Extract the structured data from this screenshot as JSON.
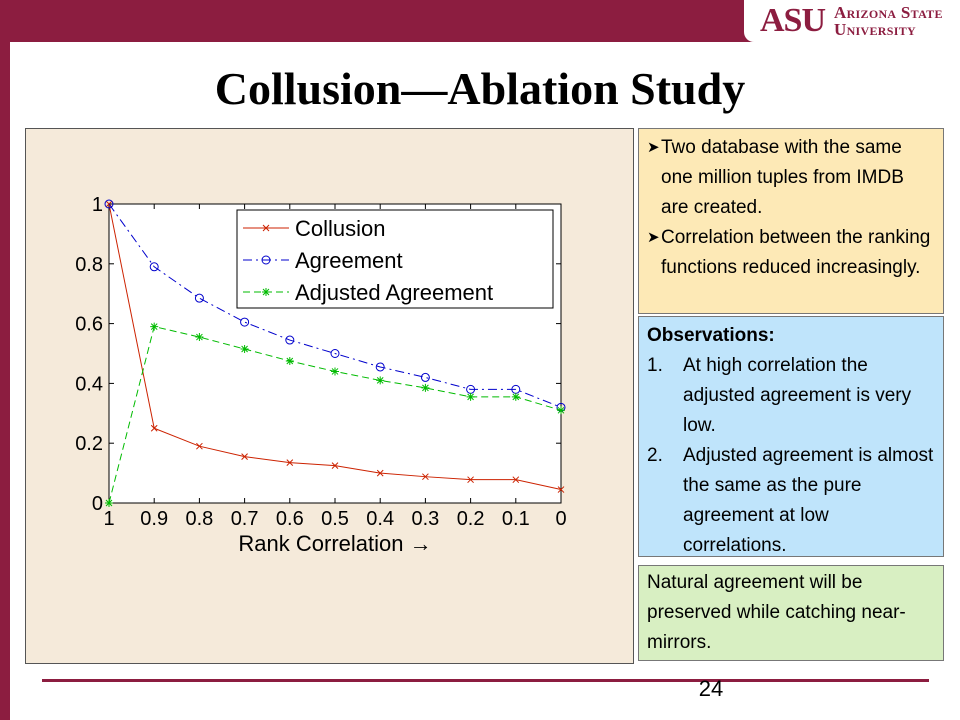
{
  "header": {
    "logo_short": "ASU",
    "logo_line1": "Arizona State",
    "logo_line2": "University",
    "colors": {
      "maroon": "#8c1d40"
    }
  },
  "slide": {
    "title": "Collusion—Ablation Study",
    "page_number": "24"
  },
  "notes": {
    "setup": [
      "Two database with the same one million tuples from IMDB are created.",
      "Correlation between the ranking functions reduced increasingly."
    ],
    "bullet_icon": "arrowhead-bullet-icon",
    "observations_title": "Observations:",
    "observations": [
      {
        "num": "1.",
        "text": "At high correlation the adjusted agreement is very low."
      },
      {
        "num": "2.",
        "text": "Adjusted agreement is almost the same as the pure agreement at low correlations."
      }
    ],
    "conclusion": "Natural agreement will be preserved while catching near-mirrors."
  },
  "chart_data": {
    "type": "line",
    "title": "",
    "xlabel": "Rank Correlation →",
    "ylabel": "",
    "x": [
      "1",
      "0.9",
      "0.8",
      "0.7",
      "0.6",
      "0.5",
      "0.4",
      "0.3",
      "0.2",
      "0.1",
      "0"
    ],
    "xlim": [
      1,
      0
    ],
    "ylim": [
      0,
      1
    ],
    "yticks": [
      "0",
      "0.2",
      "0.4",
      "0.6",
      "0.8",
      "1"
    ],
    "grid": false,
    "legend_position": "top-right",
    "series": [
      {
        "name": "Collusion",
        "color": "#cc2200",
        "marker": "x",
        "dash": "solid",
        "values": [
          1.0,
          0.25,
          0.19,
          0.155,
          0.135,
          0.125,
          0.1,
          0.088,
          0.078,
          0.078,
          0.045
        ]
      },
      {
        "name": "Agreement",
        "color": "#0000cc",
        "marker": "circle",
        "dash": "dashdot",
        "values": [
          1.0,
          0.79,
          0.685,
          0.605,
          0.545,
          0.5,
          0.455,
          0.42,
          0.38,
          0.38,
          0.32
        ]
      },
      {
        "name": "Adjusted Agreement",
        "color": "#00bb00",
        "marker": "star",
        "dash": "dashed",
        "values": [
          0.0,
          0.59,
          0.555,
          0.515,
          0.475,
          0.44,
          0.41,
          0.385,
          0.355,
          0.355,
          0.31
        ]
      }
    ]
  }
}
